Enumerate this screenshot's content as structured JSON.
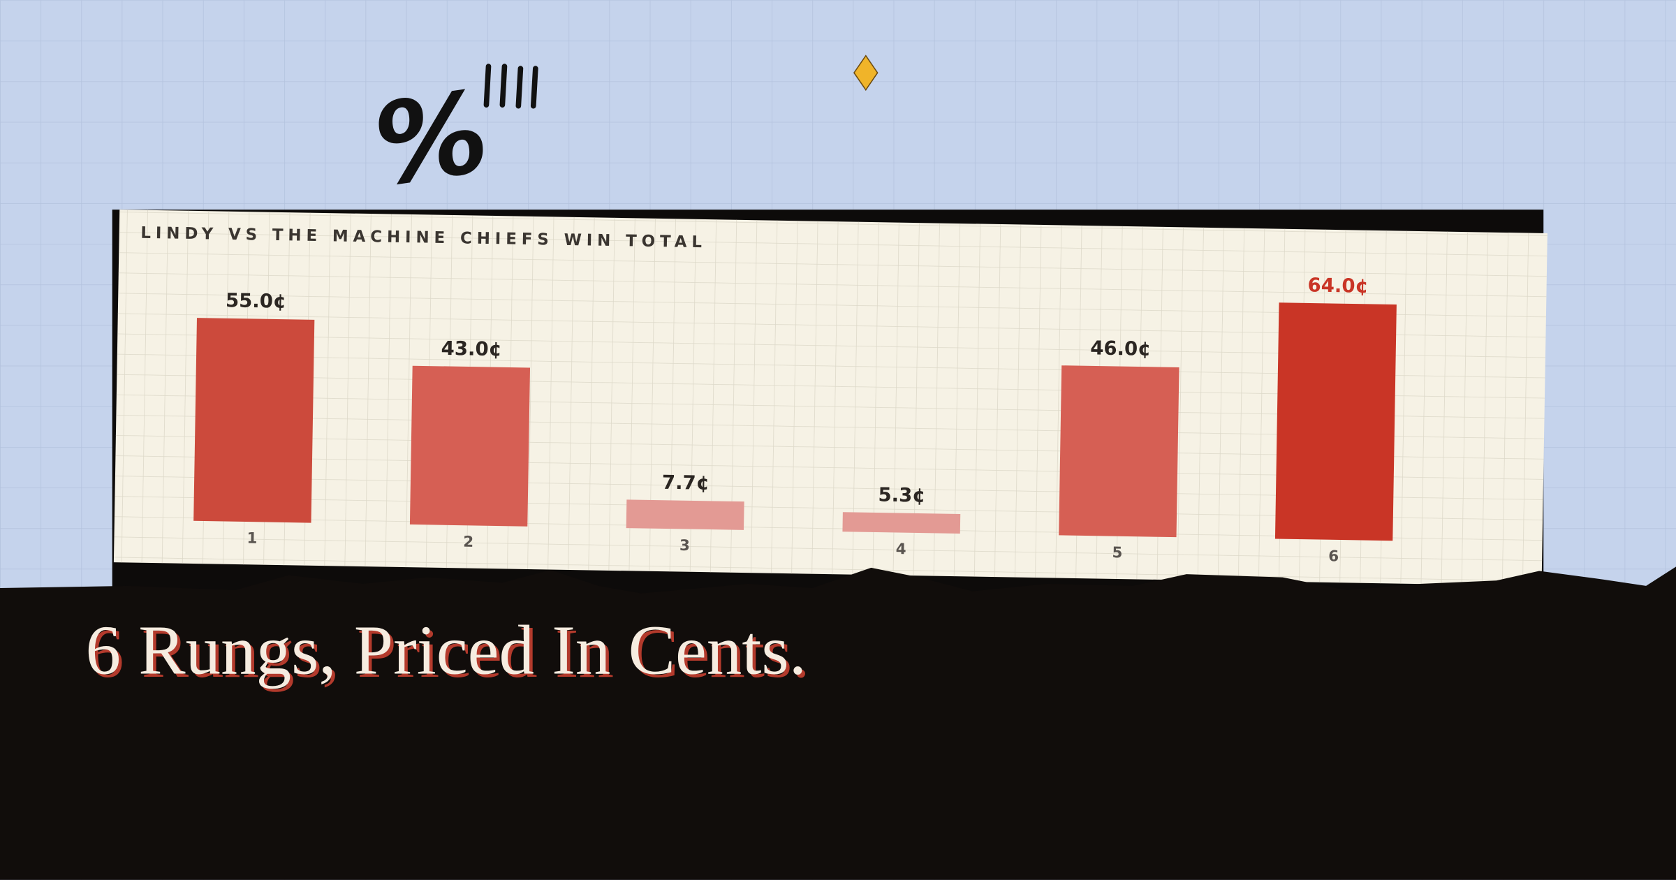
{
  "chart_data": {
    "type": "bar",
    "title": "LINDY VS THE MACHINE CHIEFS WIN TOTAL",
    "categories": [
      "1",
      "2",
      "3",
      "4",
      "5",
      "6"
    ],
    "values": [
      55.0,
      43.0,
      7.7,
      5.3,
      46.0,
      64.0
    ],
    "value_labels": [
      "55.0¢",
      "43.0¢",
      "7.7¢",
      "5.3¢",
      "46.0¢",
      "64.0¢"
    ],
    "colors": [
      "#cc4a3c",
      "#d65f54",
      "#e39a94",
      "#e39a94",
      "#d65f54",
      "#c93526"
    ],
    "label_colors": [
      "#2b2622",
      "#2b2622",
      "#2b2622",
      "#2b2622",
      "#2b2622",
      "#c93526"
    ]
  },
  "headline": "6 Rungs, Priced In Cents.",
  "decor_symbol": "%"
}
